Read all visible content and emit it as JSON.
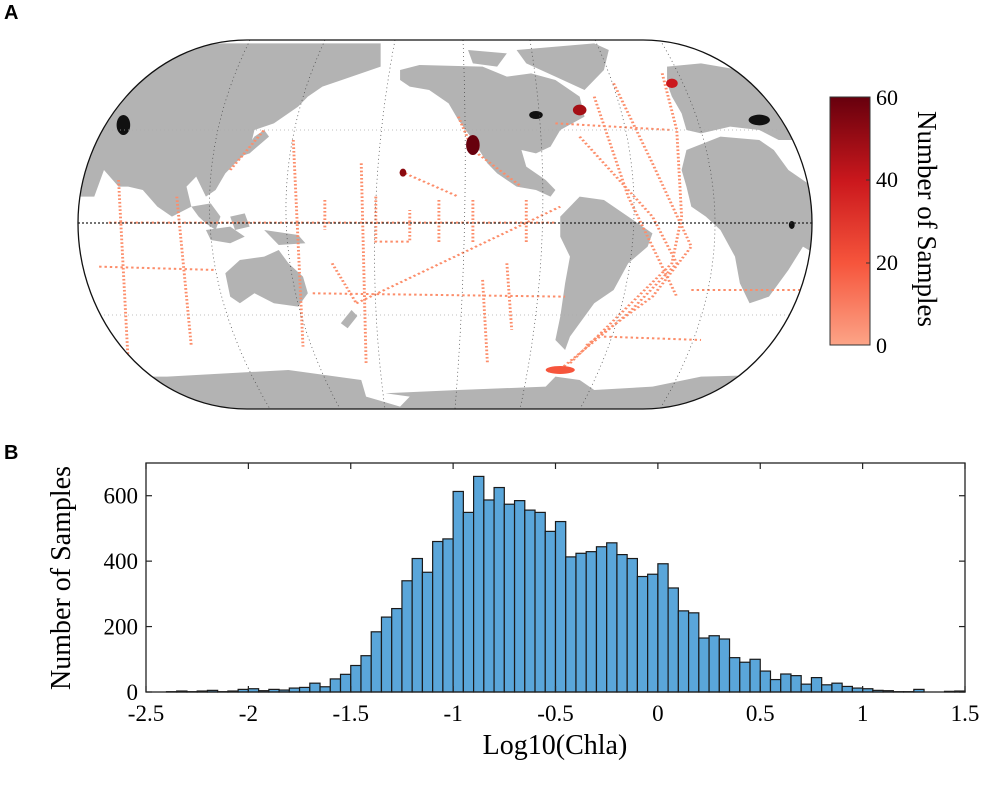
{
  "panels": {
    "a_label": "A",
    "b_label": "B"
  },
  "chart_data": [
    {
      "type": "map",
      "projection": "Robinson, Pacific-centered",
      "colorbar": {
        "label": "Number of Samples",
        "range": [
          0,
          60
        ],
        "ticks": [
          "0",
          "20",
          "40",
          "60"
        ],
        "colors": [
          "#fca487",
          "#f6553c",
          "#cb181d",
          "#67000d"
        ]
      },
      "land_color": "#b3b3b3",
      "sample_color": "#fc8d6a"
    },
    {
      "type": "bar",
      "subtype": "histogram",
      "xlabel": "Log10(Chla)",
      "ylabel": "Number of Samples",
      "xlim": [
        -2.5,
        1.5
      ],
      "ylim": [
        0,
        700
      ],
      "bin_width": 0.05,
      "bin_start": -2.5,
      "xticks": [
        "-2.5",
        "-2",
        "-1.5",
        "-1",
        "-0.5",
        "0",
        "0.5",
        "1",
        "1.5"
      ],
      "xtick_values": [
        -2.5,
        -2,
        -1.5,
        -1,
        -0.5,
        0,
        0.5,
        1,
        1.5
      ],
      "yticks": [
        "0",
        "200",
        "400",
        "600"
      ],
      "ytick_values": [
        0,
        200,
        400,
        600
      ],
      "bar_color": "#5aa6da",
      "values": [
        0,
        0,
        1,
        3,
        1,
        3,
        5,
        1,
        3,
        8,
        10,
        4,
        8,
        6,
        12,
        14,
        27,
        16,
        40,
        54,
        81,
        111,
        184,
        229,
        255,
        340,
        408,
        366,
        460,
        468,
        613,
        549,
        659,
        587,
        625,
        574,
        585,
        556,
        549,
        491,
        521,
        413,
        424,
        429,
        444,
        456,
        420,
        408,
        353,
        360,
        392,
        318,
        248,
        242,
        165,
        172,
        162,
        105,
        91,
        100,
        64,
        38,
        55,
        50,
        24,
        44,
        22,
        27,
        17,
        12,
        10,
        5,
        4,
        1,
        1,
        8,
        0,
        0,
        2,
        3
      ]
    }
  ]
}
